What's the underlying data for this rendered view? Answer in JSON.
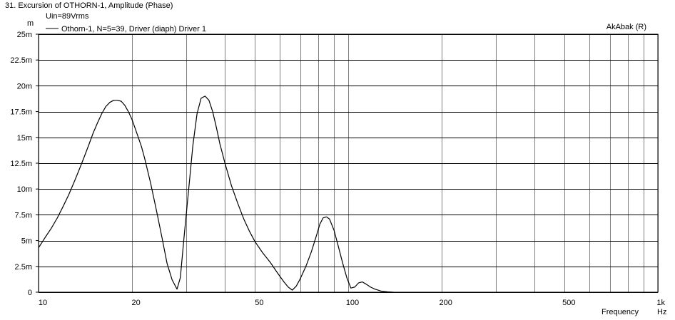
{
  "header": {
    "title": "31. Excursion of OTHORN-1, Amplitude (Phase)",
    "condition": "Uin=89Vrms",
    "brand": "AkAbak (R)"
  },
  "chart_data": {
    "type": "line",
    "title": "31. Excursion of OTHORN-1, Amplitude (Phase)",
    "subtitle": "Uin=89Vrms",
    "xlabel": "Frequency",
    "x_unit": "Hz",
    "y_unit": "m",
    "xscale": "log",
    "xlim": [
      10,
      1000
    ],
    "ylim": [
      0,
      0.025
    ],
    "grid": true,
    "legend_position": "top-left",
    "x_ticks": [
      {
        "value": 10,
        "label": "10"
      },
      {
        "value": 20,
        "label": "20"
      },
      {
        "value": 50,
        "label": "50"
      },
      {
        "value": 100,
        "label": "100"
      },
      {
        "value": 200,
        "label": "200"
      },
      {
        "value": 500,
        "label": "500"
      },
      {
        "value": 1000,
        "label": "1k"
      }
    ],
    "x_gridlines": [
      10,
      20,
      30,
      40,
      50,
      60,
      70,
      80,
      90,
      100,
      200,
      300,
      400,
      500,
      600,
      700,
      800,
      900,
      1000
    ],
    "y_ticks": [
      {
        "value": 0,
        "label": "0"
      },
      {
        "value": 0.0025,
        "label": "2.5m"
      },
      {
        "value": 0.005,
        "label": "5m"
      },
      {
        "value": 0.0075,
        "label": "7.5m"
      },
      {
        "value": 0.01,
        "label": "10m"
      },
      {
        "value": 0.0125,
        "label": "12.5m"
      },
      {
        "value": 0.015,
        "label": "15m"
      },
      {
        "value": 0.0175,
        "label": "17.5m"
      },
      {
        "value": 0.02,
        "label": "20m"
      },
      {
        "value": 0.0225,
        "label": "22.5m"
      },
      {
        "value": 0.025,
        "label": "25m"
      }
    ],
    "series": [
      {
        "name": "Othorn-1, N=5=39, Driver (diaph) Driver 1",
        "color": "#000000",
        "x": [
          10,
          10.5,
          11,
          11.5,
          12,
          12.5,
          13,
          13.5,
          14,
          14.5,
          15,
          15.5,
          16,
          16.5,
          17,
          17.5,
          18,
          18.5,
          19,
          19.5,
          20,
          20.5,
          21,
          21.5,
          22,
          23,
          24,
          25,
          26,
          27,
          28,
          28.7,
          29.5,
          30.5,
          31.5,
          32.5,
          33.5,
          34.5,
          35.5,
          36.5,
          37.5,
          38.5,
          40,
          42,
          44,
          46,
          48,
          50,
          53,
          56,
          59,
          62,
          64,
          66,
          68,
          70,
          73,
          76,
          79,
          81,
          83,
          85,
          87,
          90,
          93,
          96,
          99,
          102,
          105,
          108,
          111,
          114,
          118,
          122,
          128,
          134,
          140
        ],
        "y": [
          0.0043,
          0.0053,
          0.0062,
          0.0072,
          0.0083,
          0.0094,
          0.0106,
          0.0118,
          0.013,
          0.0142,
          0.0154,
          0.0164,
          0.0173,
          0.018,
          0.0184,
          0.0186,
          0.0186,
          0.0185,
          0.0181,
          0.0175,
          0.0168,
          0.0159,
          0.015,
          0.0141,
          0.013,
          0.0106,
          0.008,
          0.0054,
          0.0028,
          0.0012,
          0.0003,
          0.0014,
          0.0053,
          0.0098,
          0.0142,
          0.0173,
          0.0188,
          0.019,
          0.0186,
          0.0175,
          0.016,
          0.0144,
          0.0125,
          0.0103,
          0.0086,
          0.0071,
          0.0059,
          0.0049,
          0.0038,
          0.0029,
          0.0019,
          0.001,
          0.0005,
          0.0002,
          0.0006,
          0.0013,
          0.0025,
          0.0039,
          0.0055,
          0.0066,
          0.0072,
          0.0073,
          0.0071,
          0.006,
          0.0044,
          0.0028,
          0.0014,
          0.0004,
          0.0005,
          0.0009,
          0.001,
          0.0008,
          0.0005,
          0.0003,
          0.0001,
          4e-05,
          0.0
        ]
      }
    ]
  }
}
